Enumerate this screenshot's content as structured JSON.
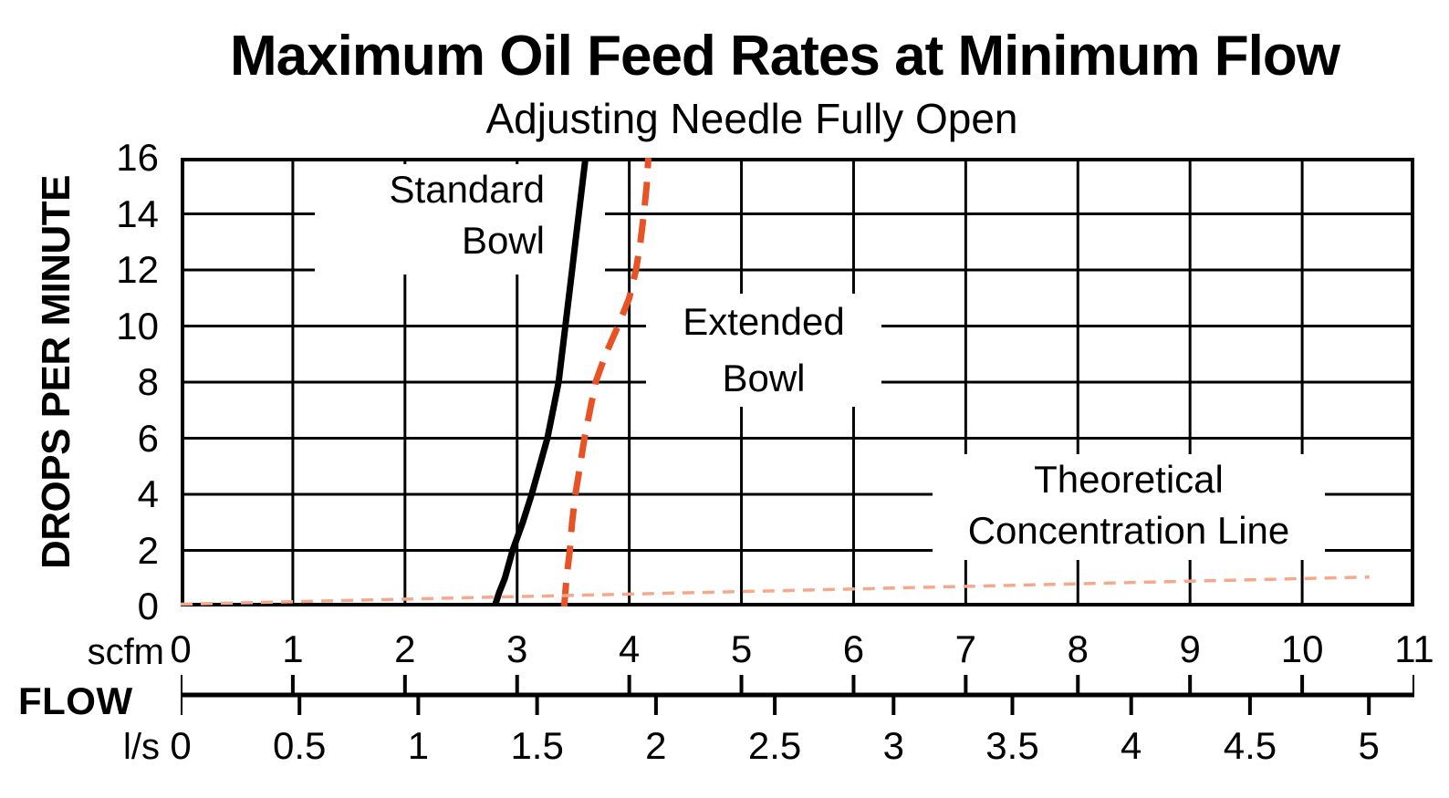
{
  "chart_data": {
    "type": "line",
    "title": "Maximum Oil Feed Rates at Minimum Flow",
    "subtitle": "Adjusting Needle Fully Open",
    "y_axis": {
      "label": "DROPS PER MINUTE",
      "min": 0,
      "max": 16,
      "tick_step": 2,
      "ticks": [
        0,
        2,
        4,
        6,
        8,
        10,
        12,
        14,
        16
      ]
    },
    "x_axis": {
      "label": "FLOW",
      "unit": "scfm",
      "min": 0,
      "max": 11,
      "tick_step": 1,
      "ticks": [
        0,
        1,
        2,
        3,
        4,
        5,
        6,
        7,
        8,
        9,
        10,
        11
      ]
    },
    "x_axis_secondary": {
      "unit": "l/s",
      "ticks": [
        0,
        0.5,
        1,
        1.5,
        2,
        2.5,
        3,
        3.5,
        4,
        4.5,
        5
      ],
      "scfm_per_unit": 2.1189
    },
    "grid": "on",
    "colors": {
      "grid": "#000000",
      "standard_bowl": "#000000",
      "extended_bowl": "#E85326",
      "theoretical": "#F5A98C"
    },
    "series": [
      {
        "name": "Standard Bowl",
        "style": "solid",
        "color": "#000000",
        "x_unit": "scfm",
        "points": [
          [
            2.8,
            0
          ],
          [
            2.84,
            0.5
          ],
          [
            2.89,
            1
          ],
          [
            2.96,
            2
          ],
          [
            3.05,
            3
          ],
          [
            3.13,
            4
          ],
          [
            3.2,
            5
          ],
          [
            3.27,
            6
          ],
          [
            3.32,
            7
          ],
          [
            3.37,
            8
          ],
          [
            3.4,
            9
          ],
          [
            3.43,
            10
          ],
          [
            3.46,
            11
          ],
          [
            3.49,
            12
          ],
          [
            3.52,
            13
          ],
          [
            3.55,
            14
          ],
          [
            3.58,
            15
          ],
          [
            3.61,
            16
          ]
        ]
      },
      {
        "name": "Extended Bowl",
        "style": "dashed",
        "color": "#E85326",
        "x_unit": "scfm",
        "points": [
          [
            3.42,
            0
          ],
          [
            3.44,
            1
          ],
          [
            3.47,
            2
          ],
          [
            3.49,
            3
          ],
          [
            3.52,
            4
          ],
          [
            3.56,
            5
          ],
          [
            3.6,
            6
          ],
          [
            3.65,
            7
          ],
          [
            3.7,
            8
          ],
          [
            3.79,
            9
          ],
          [
            3.9,
            10
          ],
          [
            4.0,
            11
          ],
          [
            4.06,
            12
          ],
          [
            4.1,
            13
          ],
          [
            4.13,
            14
          ],
          [
            4.155,
            15
          ],
          [
            4.17,
            16
          ]
        ]
      },
      {
        "name": "Theoretical Concentration Line",
        "style": "dotted",
        "color": "#F5A98C",
        "x_unit": "scfm",
        "points": [
          [
            0,
            0.08
          ],
          [
            5.3,
            0.56
          ],
          [
            10.6,
            1.05
          ]
        ]
      }
    ],
    "annotations": [
      {
        "lines": [
          "Standard",
          "Bowl"
        ]
      },
      {
        "lines": [
          "Extended",
          "Bowl"
        ]
      },
      {
        "lines": [
          "Theoretical",
          "Concentration Line"
        ]
      }
    ]
  }
}
